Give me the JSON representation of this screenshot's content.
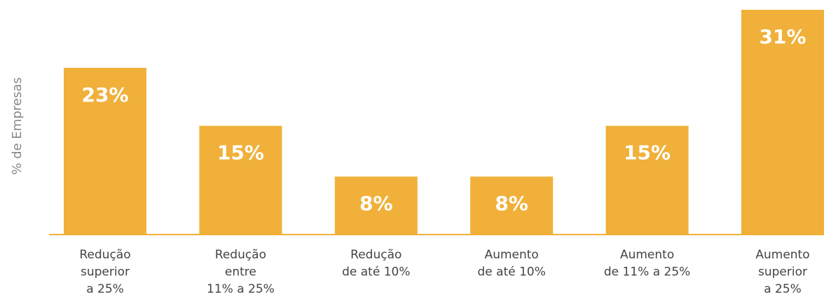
{
  "chart_data": {
    "type": "bar",
    "y_label": "% de Empresas",
    "categories": [
      [
        "Redução",
        "superior",
        "a 25%"
      ],
      [
        "Redução",
        "entre",
        "11% a 25%"
      ],
      [
        "Redução",
        "de até 10%"
      ],
      [
        "Aumento",
        "de até 10%"
      ],
      [
        "Aumento",
        "de 11% a 25%"
      ],
      [
        "Aumento",
        "superior",
        "a 25%"
      ]
    ],
    "values": [
      23,
      15,
      8,
      8,
      15,
      31
    ],
    "value_labels": [
      "23%",
      "15%",
      "8%",
      "8%",
      "15%",
      "31%"
    ],
    "color": "#f0b03a"
  }
}
